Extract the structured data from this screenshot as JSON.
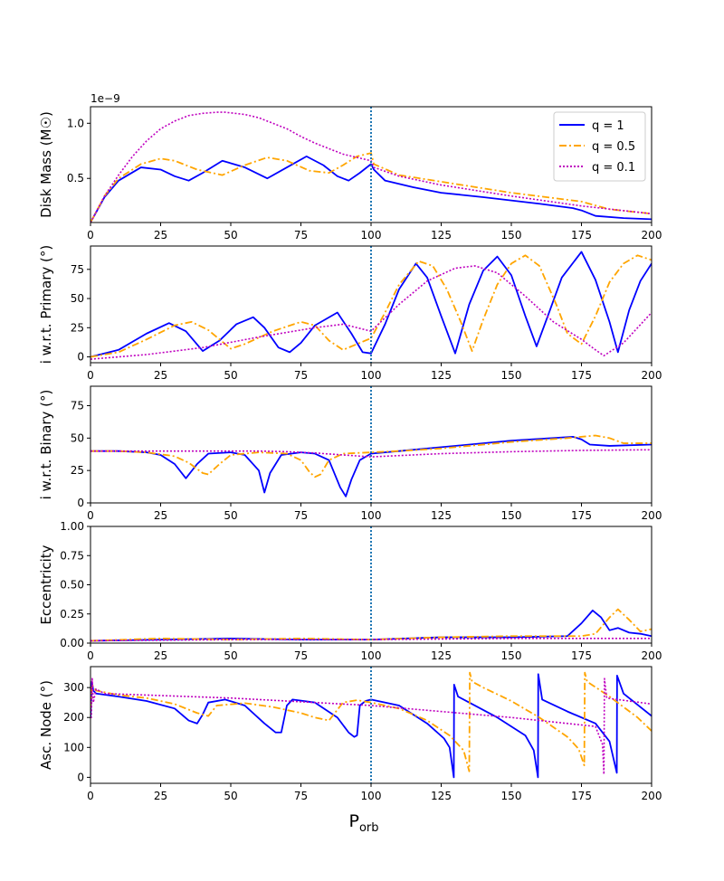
{
  "figure": {
    "xlabel": "P",
    "xlabel_sub": "orb"
  },
  "legend": {
    "entries": [
      {
        "label": "q = 1",
        "q": "1",
        "color": "#0000ff",
        "dash": "solid"
      },
      {
        "label": "q = 0.5",
        "q": "0.5",
        "color": "#ffa500",
        "dash": "dashdot"
      },
      {
        "label": "q = 0.1",
        "q": "0.1",
        "color": "#bf00bf",
        "dash": "dotted"
      }
    ]
  },
  "chart_data": [
    {
      "type": "line",
      "id": "disk-mass",
      "ylabel": "Disk Mass (M☉)",
      "offset_text": "1e−9",
      "xlim": [
        0,
        200
      ],
      "ylim": [
        0.1,
        1.15
      ],
      "xticks": [
        0,
        25,
        50,
        75,
        100,
        125,
        150,
        175,
        200
      ],
      "yticks": [
        0.5,
        1.0
      ],
      "ytick_labels": [
        "0.5",
        "1.0"
      ],
      "vline_x": 100,
      "series": [
        {
          "name": "q = 1",
          "x": [
            0,
            5,
            10,
            18,
            25,
            30,
            35,
            40,
            47,
            55,
            63,
            70,
            77,
            83,
            88,
            92,
            96,
            100,
            101,
            105,
            115,
            125,
            140,
            160,
            172,
            175,
            180,
            190,
            200
          ],
          "y": [
            0.1,
            0.33,
            0.48,
            0.6,
            0.58,
            0.52,
            0.48,
            0.55,
            0.66,
            0.6,
            0.5,
            0.6,
            0.7,
            0.62,
            0.52,
            0.48,
            0.55,
            0.63,
            0.58,
            0.48,
            0.42,
            0.37,
            0.33,
            0.27,
            0.23,
            0.21,
            0.16,
            0.14,
            0.13
          ]
        },
        {
          "name": "q = 0.5",
          "x": [
            0,
            5,
            10,
            18,
            25,
            30,
            38,
            47,
            55,
            63,
            70,
            78,
            85,
            90,
            95,
            100,
            101,
            110,
            125,
            150,
            175,
            185,
            200
          ],
          "y": [
            0.1,
            0.34,
            0.5,
            0.63,
            0.68,
            0.66,
            0.58,
            0.53,
            0.62,
            0.69,
            0.66,
            0.57,
            0.55,
            0.62,
            0.7,
            0.73,
            0.63,
            0.53,
            0.47,
            0.37,
            0.29,
            0.22,
            0.18
          ]
        },
        {
          "name": "q = 0.1",
          "x": [
            0,
            5,
            10,
            15,
            20,
            25,
            30,
            35,
            40,
            45,
            48,
            55,
            60,
            65,
            70,
            75,
            80,
            85,
            90,
            95,
            100,
            101,
            110,
            125,
            150,
            175,
            200
          ],
          "y": [
            0.1,
            0.34,
            0.53,
            0.7,
            0.84,
            0.95,
            1.02,
            1.07,
            1.09,
            1.1,
            1.1,
            1.08,
            1.05,
            1.0,
            0.95,
            0.88,
            0.82,
            0.77,
            0.72,
            0.69,
            0.66,
            0.6,
            0.52,
            0.44,
            0.34,
            0.25,
            0.18
          ]
        }
      ]
    },
    {
      "type": "line",
      "id": "incl-primary",
      "ylabel": "i w.r.t. Primary (°)",
      "xlim": [
        0,
        200
      ],
      "ylim": [
        -5,
        95
      ],
      "xticks": [
        0,
        25,
        50,
        75,
        100,
        125,
        150,
        175,
        200
      ],
      "yticks": [
        0,
        25,
        50,
        75
      ],
      "ytick_labels": [
        "0",
        "25",
        "50",
        "75"
      ],
      "vline_x": 100,
      "series": [
        {
          "name": "q = 1",
          "x": [
            0,
            10,
            20,
            28,
            34,
            40,
            46,
            52,
            58,
            62,
            67,
            71,
            75,
            80,
            88,
            93,
            97,
            100,
            105,
            110,
            116,
            120,
            125,
            130,
            135,
            140,
            145,
            150,
            155,
            159,
            163,
            168,
            175,
            180,
            185,
            188,
            192,
            196,
            200
          ],
          "y": [
            0,
            6,
            20,
            29,
            22,
            5,
            14,
            28,
            34,
            25,
            8,
            4,
            12,
            27,
            38,
            20,
            4,
            3,
            28,
            58,
            80,
            68,
            35,
            3,
            45,
            74,
            86,
            70,
            35,
            9,
            35,
            68,
            90,
            66,
            30,
            4,
            40,
            65,
            80
          ]
        },
        {
          "name": "q = 0.5",
          "x": [
            0,
            10,
            20,
            30,
            36,
            42,
            50,
            55,
            65,
            75,
            80,
            85,
            90,
            100,
            105,
            110,
            117,
            122,
            127,
            132,
            136,
            140,
            145,
            150,
            155,
            160,
            166,
            170,
            175,
            180,
            185,
            190,
            195,
            200
          ],
          "y": [
            0,
            4,
            15,
            27,
            30,
            23,
            7,
            11,
            22,
            30,
            27,
            14,
            6,
            16,
            38,
            62,
            82,
            78,
            58,
            30,
            5,
            32,
            62,
            80,
            87,
            78,
            45,
            20,
            11,
            35,
            64,
            80,
            87,
            83
          ]
        },
        {
          "name": "q = 0.1",
          "x": [
            0,
            20,
            40,
            60,
            80,
            90,
            100,
            110,
            120,
            130,
            137,
            145,
            155,
            165,
            175,
            180,
            183,
            190,
            200
          ],
          "y": [
            -2,
            2,
            8,
            17,
            25,
            28,
            22,
            45,
            65,
            76,
            78,
            72,
            52,
            30,
            15,
            6,
            1,
            12,
            38
          ]
        }
      ]
    },
    {
      "type": "line",
      "id": "incl-binary",
      "ylabel": "i w.r.t. Binary (°)",
      "xlim": [
        0,
        200
      ],
      "ylim": [
        0,
        90
      ],
      "xticks": [
        0,
        25,
        50,
        75,
        100,
        125,
        150,
        175,
        200
      ],
      "yticks": [
        0,
        25,
        50,
        75
      ],
      "ytick_labels": [
        "0",
        "25",
        "50",
        "75"
      ],
      "vline_x": 100,
      "series": [
        {
          "name": "q = 1",
          "x": [
            0,
            10,
            20,
            25,
            30,
            34,
            38,
            42,
            50,
            55,
            60,
            62,
            64,
            68,
            75,
            80,
            85,
            89,
            91,
            93,
            96,
            100,
            110,
            125,
            150,
            172,
            175,
            178,
            185,
            200
          ],
          "y": [
            40,
            40,
            39,
            37,
            30,
            19,
            30,
            38,
            39,
            37,
            25,
            8,
            23,
            37,
            39,
            38,
            33,
            12,
            5,
            18,
            33,
            38,
            40,
            43,
            48,
            51,
            49,
            45,
            44,
            45
          ]
        },
        {
          "name": "q = 0.5",
          "x": [
            0,
            10,
            20,
            30,
            35,
            40,
            42,
            46,
            50,
            60,
            70,
            75,
            78,
            80,
            82,
            85,
            90,
            100,
            110,
            125,
            150,
            170,
            180,
            185,
            190,
            200
          ],
          "y": [
            40,
            40,
            39,
            36,
            31,
            23,
            22,
            30,
            37,
            39,
            38,
            33,
            24,
            20,
            22,
            33,
            38,
            39,
            40,
            42,
            47,
            50,
            52,
            50,
            46,
            46
          ]
        },
        {
          "name": "q = 0.1",
          "x": [
            0,
            20,
            40,
            60,
            70,
            80,
            90,
            100,
            110,
            125,
            150,
            175,
            200
          ],
          "y": [
            40,
            40,
            40,
            40,
            39.5,
            38.5,
            37,
            35.5,
            36.5,
            38,
            39.5,
            40.5,
            41
          ]
        }
      ]
    },
    {
      "type": "line",
      "id": "eccentricity",
      "ylabel": "Eccentricity",
      "xlim": [
        0,
        200
      ],
      "ylim": [
        0,
        1.0
      ],
      "xticks": [
        0,
        25,
        50,
        75,
        100,
        125,
        150,
        175,
        200
      ],
      "yticks": [
        0.0,
        0.25,
        0.5,
        0.75,
        1.0
      ],
      "ytick_labels": [
        "0.00",
        "0.25",
        "0.50",
        "0.75",
        "1.00"
      ],
      "vline_x": 100,
      "series": [
        {
          "name": "q = 1",
          "x": [
            0,
            25,
            50,
            75,
            100,
            125,
            150,
            170,
            175,
            179,
            182,
            185,
            188,
            192,
            196,
            200
          ],
          "y": [
            0.02,
            0.03,
            0.04,
            0.03,
            0.03,
            0.05,
            0.05,
            0.06,
            0.17,
            0.28,
            0.22,
            0.11,
            0.13,
            0.09,
            0.08,
            0.06
          ]
        },
        {
          "name": "q = 0.5",
          "x": [
            0,
            25,
            50,
            75,
            100,
            125,
            150,
            175,
            180,
            185,
            188,
            192,
            196,
            200
          ],
          "y": [
            0.02,
            0.04,
            0.03,
            0.04,
            0.03,
            0.05,
            0.06,
            0.06,
            0.08,
            0.22,
            0.29,
            0.2,
            0.1,
            0.12
          ]
        },
        {
          "name": "q = 0.1",
          "x": [
            0,
            50,
            100,
            150,
            200
          ],
          "y": [
            0.02,
            0.03,
            0.03,
            0.04,
            0.04
          ]
        }
      ]
    },
    {
      "type": "line",
      "id": "asc-node",
      "ylabel": "Asc. Node (°)",
      "xlim": [
        0,
        200
      ],
      "ylim": [
        -20,
        370
      ],
      "xticks": [
        0,
        25,
        50,
        75,
        100,
        125,
        150,
        175,
        200
      ],
      "yticks": [
        0,
        100,
        200,
        300
      ],
      "ytick_labels": [
        "0",
        "100",
        "200",
        "300"
      ],
      "vline_x": 100,
      "series": [
        {
          "name": "q = 1",
          "x": [
            0,
            0.5,
            1,
            2,
            10,
            20,
            30,
            35,
            38,
            40,
            42,
            48,
            55,
            62,
            66,
            68,
            70,
            72,
            80,
            88,
            92,
            94,
            95,
            96,
            98,
            100,
            110,
            120,
            126,
            128,
            129.5,
            129.6,
            131,
            135,
            145,
            155,
            158,
            159.5,
            159.6,
            161,
            170,
            180,
            185,
            187.6,
            187.7,
            190,
            200
          ],
          "y": [
            200,
            320,
            290,
            280,
            270,
            255,
            230,
            190,
            180,
            210,
            250,
            260,
            240,
            180,
            150,
            150,
            240,
            260,
            250,
            200,
            150,
            135,
            140,
            240,
            255,
            260,
            240,
            180,
            130,
            100,
            0,
            310,
            270,
            250,
            200,
            140,
            90,
            0,
            345,
            260,
            220,
            180,
            120,
            15,
            340,
            280,
            205
          ]
        },
        {
          "name": "q = 0.5",
          "x": [
            0,
            0.5,
            2,
            10,
            20,
            30,
            38,
            42,
            45,
            55,
            65,
            75,
            80,
            85,
            90,
            95,
            100,
            110,
            120,
            128,
            133,
            135,
            135.2,
            136,
            140,
            150,
            160,
            170,
            174,
            176,
            176.2,
            177,
            185,
            195,
            200
          ],
          "y": [
            230,
            310,
            290,
            275,
            265,
            245,
            215,
            205,
            240,
            248,
            235,
            215,
            200,
            190,
            250,
            258,
            250,
            230,
            190,
            140,
            90,
            20,
            350,
            320,
            300,
            255,
            200,
            135,
            95,
            40,
            350,
            320,
            270,
            200,
            155
          ]
        },
        {
          "name": "q = 0.1",
          "x": [
            0,
            0.3,
            0.6,
            1,
            2,
            5,
            20,
            50,
            100,
            150,
            180,
            182.5,
            183,
            183.2,
            184,
            200
          ],
          "y": [
            300,
            200,
            330,
            250,
            295,
            280,
            275,
            265,
            240,
            200,
            170,
            110,
            10,
            330,
            265,
            245
          ]
        }
      ]
    }
  ]
}
